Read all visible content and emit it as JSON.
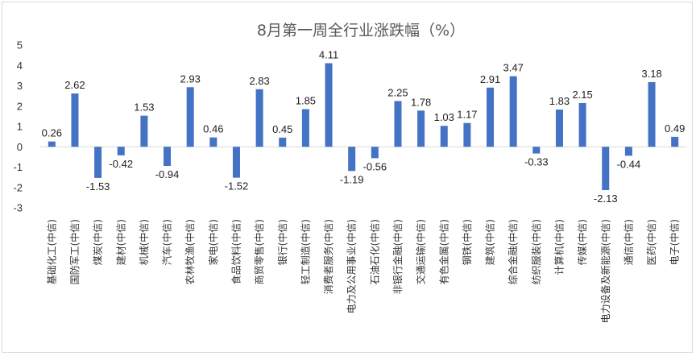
{
  "chart_data": {
    "type": "bar",
    "title": "8月第一周全行业涨跌幅（%）",
    "xlabel": "",
    "ylabel": "",
    "ylim": [
      -3,
      5
    ],
    "yticks": [
      -3,
      -2,
      -1,
      0,
      1,
      2,
      3,
      4,
      5
    ],
    "grid": false,
    "legend": "none",
    "bar_color": "#4472c4",
    "categories": [
      "基础化工(中信)",
      "国防军工(中信)",
      "煤炭(中信)",
      "建材(中信)",
      "机械(中信)",
      "汽车(中信)",
      "农林牧渔(中信)",
      "家电(中信)",
      "食品饮料(中信)",
      "商贸零售(中信)",
      "银行(中信)",
      "轻工制造(中信)",
      "消费者服务(中信)",
      "电力及公用事业(中信)",
      "石油石化(中信)",
      "非银行金融(中信)",
      "交通运输(中信)",
      "有色金属(中信)",
      "钢铁(中信)",
      "建筑(中信)",
      "综合金融(中信)",
      "纺织服装(中信)",
      "计算机(中信)",
      "传媒(中信)",
      "电力设备及新能源(中信)",
      "通信(中信)",
      "医药(中信)",
      "电子(中信)"
    ],
    "values": [
      0.26,
      2.62,
      -1.53,
      -0.42,
      1.53,
      -0.94,
      2.93,
      0.46,
      -1.52,
      2.83,
      0.45,
      1.85,
      4.11,
      -1.19,
      -0.56,
      2.25,
      1.78,
      1.03,
      1.17,
      2.91,
      3.47,
      -0.33,
      1.83,
      2.15,
      -2.13,
      -0.44,
      3.18,
      0.49
    ],
    "value_labels": [
      "0.26",
      "2.62",
      "-1.53",
      "-0.42",
      "1.53",
      "-0.94",
      "2.93",
      "0.46",
      "-1.52",
      "2.83",
      "0.45",
      "1.85",
      "4.11",
      "-1.19",
      "-0.56",
      "2.25",
      "1.78",
      "1.03",
      "1.17",
      "2.91",
      "3.47",
      "-0.33",
      "1.83",
      "2.15",
      "-2.13",
      "-0.44",
      "3.18",
      "0.49"
    ]
  }
}
